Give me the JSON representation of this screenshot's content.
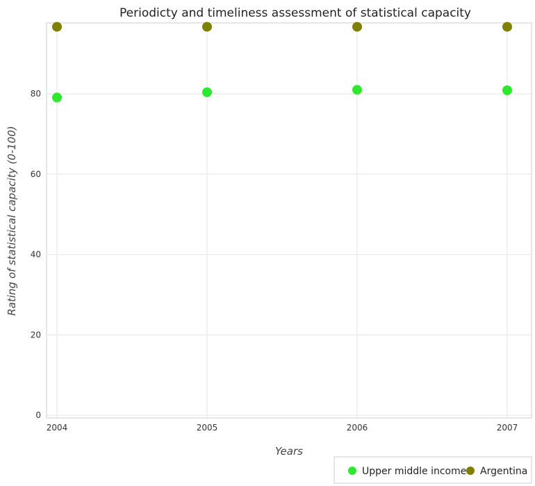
{
  "chart_data": {
    "type": "scatter",
    "title": "Periodicty and timeliness assessment of statistical capacity",
    "xlabel": "Years",
    "ylabel": "Rating of statistical capacity (0-100)",
    "categories": [
      "2004",
      "2005",
      "2006",
      "2007"
    ],
    "ylim": [
      0,
      100
    ],
    "yticks": [
      "0",
      "20",
      "40",
      "60",
      "80"
    ],
    "grid": true,
    "legend_position": "bottom-right",
    "series": [
      {
        "name": "Upper middle income",
        "color": "#2ee82e",
        "values": [
          79.1,
          80.4,
          81.0,
          80.9
        ]
      },
      {
        "name": "Argentina",
        "color": "#808000",
        "values": [
          96.7,
          96.7,
          96.7,
          96.7
        ]
      }
    ]
  }
}
